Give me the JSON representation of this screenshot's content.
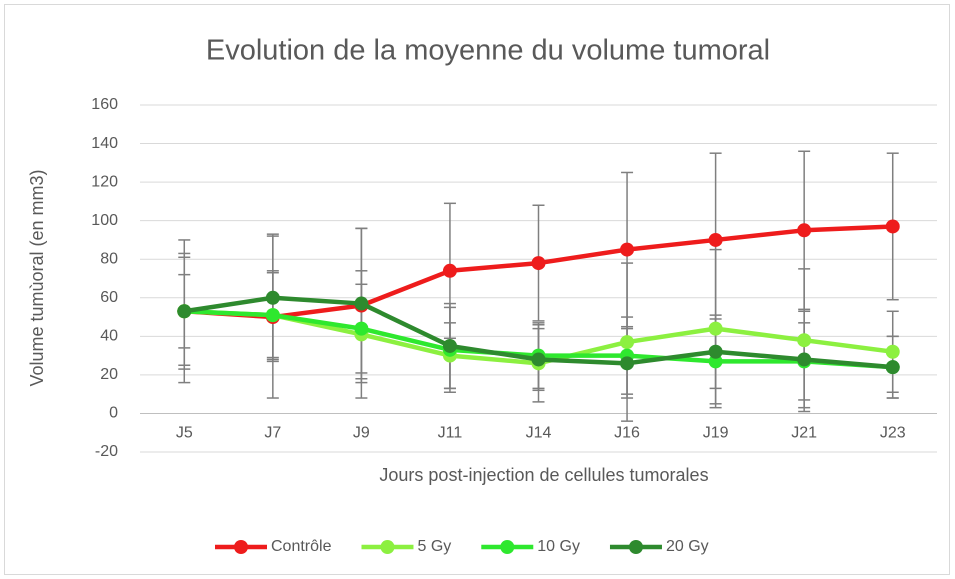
{
  "chart_data": {
    "type": "line",
    "title": "Evolution de la moyenne du volume tumoral",
    "x_label": "Jours post-injection de cellules tumorales",
    "y_label": "Volume tumùoral (en mm3)",
    "categories": [
      "J5",
      "J7",
      "J9",
      "J11",
      "J14",
      "J16",
      "J19",
      "J21",
      "J23"
    ],
    "ylim": [
      -20,
      160
    ],
    "yticks": [
      -20,
      0,
      20,
      40,
      60,
      80,
      100,
      120,
      140,
      160
    ],
    "grid": true,
    "legend": "bottom",
    "error_color": "#7f7f7f",
    "series": [
      {
        "name": "Contrôle",
        "color": "#ee1c1c",
        "values": [
          53,
          50,
          56,
          74,
          78,
          85,
          90,
          95,
          97
        ],
        "errors": [
          37,
          42,
          40,
          35,
          30,
          40,
          45,
          41,
          38
        ]
      },
      {
        "name": "5 Gy",
        "color": "#8cf040",
        "values": [
          53,
          51,
          41,
          30,
          26,
          37,
          44,
          38,
          32
        ],
        "errors": [
          30,
          22,
          33,
          17,
          20,
          41,
          41,
          37,
          21
        ]
      },
      {
        "name": "10 Gy",
        "color": "#2ee82e",
        "values": [
          53,
          51,
          44,
          33,
          30,
          30,
          27,
          27,
          24
        ],
        "errors": [
          19,
          23,
          23,
          22,
          17,
          20,
          22,
          20,
          16
        ]
      },
      {
        "name": "20 Gy",
        "color": "#2e8a2e",
        "values": [
          53,
          60,
          57,
          35,
          28,
          26,
          32,
          28,
          24
        ],
        "errors": [
          28,
          33,
          39,
          22,
          16,
          18,
          19,
          25,
          16
        ]
      }
    ]
  }
}
